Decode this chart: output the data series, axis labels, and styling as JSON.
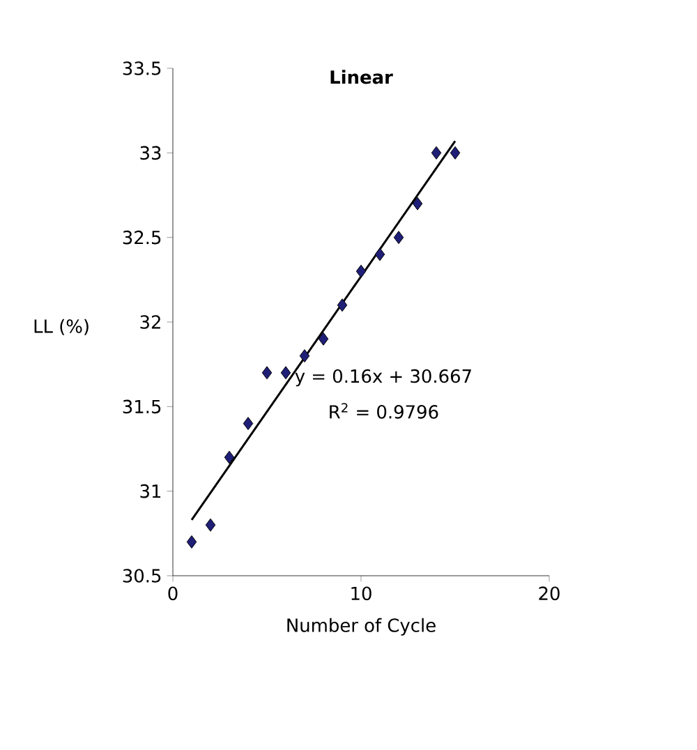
{
  "chart_data": {
    "type": "scatter",
    "title": "Linear",
    "xlabel": "Number of Cycle",
    "ylabel": "LL (%)",
    "annotations": [
      "y = 0.16x + 30.667",
      "R$^{2}$ = 0.9796"
    ],
    "series": [
      {
        "color": "#1f1f78",
        "marker": "diamond",
        "x": [
          1,
          2,
          3,
          4,
          5,
          6,
          7,
          8,
          9,
          10,
          11,
          12,
          13,
          14,
          15
        ],
        "values": [
          30.7,
          30.8,
          31.2,
          31.4,
          31.7,
          31.7,
          31.8,
          31.9,
          32.1,
          32.3,
          32.4,
          32.5,
          32.7,
          33.0,
          33.0
        ]
      },
      {
        "type": "line",
        "color": "#000000",
        "marker": "none",
        "x": [
          1,
          15
        ],
        "values": [
          30.83,
          33.07
        ]
      }
    ],
    "xlim": [
      0,
      20
    ],
    "ylim": [
      30.5,
      33.5
    ],
    "xticks": [
      0,
      10,
      20
    ],
    "yticks": [
      30.5,
      31,
      31.5,
      32,
      32.5,
      33,
      33.5
    ],
    "grid": false
  }
}
